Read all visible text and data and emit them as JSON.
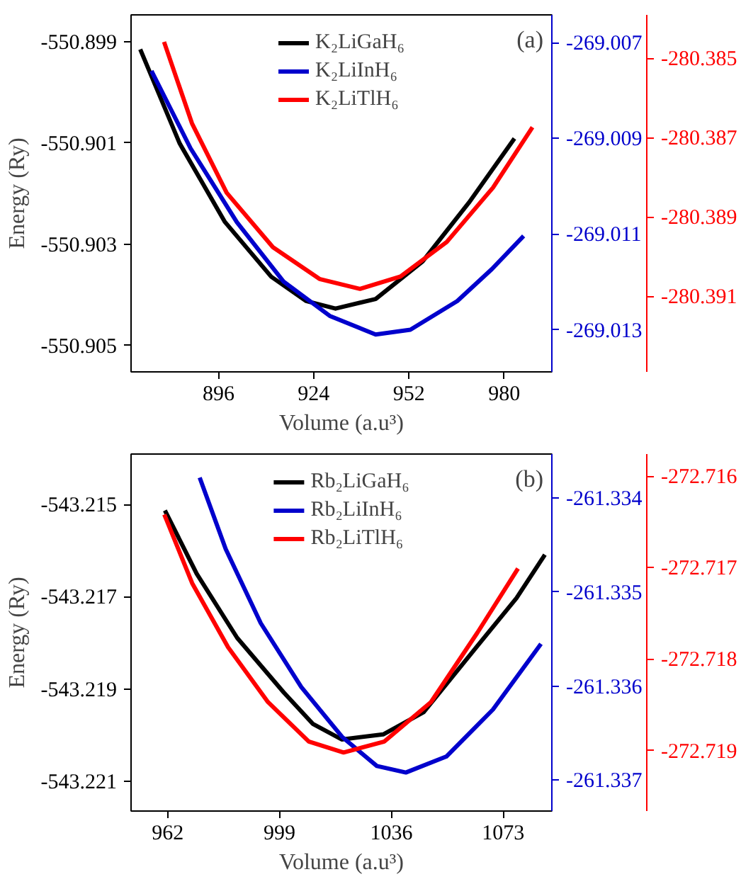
{
  "chart_data": [
    {
      "type": "line",
      "xlabel": "Volume (a.u³)",
      "ylabel": "Energy (Ry)",
      "annotations": [
        "(a)"
      ],
      "legend": "top",
      "grid": false,
      "line_style": "solid",
      "marker": "none",
      "xlim": [
        870.3,
        994
      ],
      "xticks": [
        896,
        924,
        952,
        980
      ],
      "ylim": [
        -550.90552,
        -550.89847
      ],
      "yticks": [
        -550.905,
        -550.903,
        -550.901,
        -550.899
      ],
      "y2lim": [
        -269.01388,
        -269.00642
      ],
      "y2ticks": [
        -269.013,
        -269.011,
        -269.009,
        -269.007
      ],
      "y3lim": [
        -280.3929,
        -280.38391
      ],
      "y3ticks": [
        -280.391,
        -280.389,
        -280.387,
        -280.385
      ],
      "series": [
        {
          "name": "K₂LiGaH₆",
          "color": "#000000",
          "x": [
            873,
            884.6,
            897.9,
            911.5,
            921.7,
            930.4,
            942.2,
            956,
            969.6,
            983
          ],
          "values": [
            -550.89915,
            -550.90101,
            -550.90256,
            -550.90364,
            -550.90412,
            -550.90427,
            -550.90408,
            -550.90334,
            -550.90218,
            -550.90091
          ]
        },
        {
          "name": "K₂LiInH₆",
          "color": "#0000cc",
          "axis": "y2",
          "x": [
            876.3,
            887.8,
            901.4,
            915.1,
            928.7,
            942.2,
            952.4,
            966.2,
            976.4,
            985.7
          ],
          "values": [
            -269.00759,
            -269.00921,
            -269.01075,
            -269.01199,
            -269.01271,
            -269.0131,
            -269.013,
            -269.0124,
            -269.01173,
            -269.01104
          ]
        },
        {
          "name": "K₂LiTlH₆",
          "color": "#ff0000",
          "axis": "y3",
          "x": [
            880,
            888.2,
            898.4,
            912,
            925.7,
            937.6,
            949.5,
            963.1,
            976.7,
            988.3
          ],
          "values": [
            -280.38459,
            -280.38664,
            -280.38839,
            -280.38976,
            -280.39056,
            -280.39081,
            -280.3905,
            -280.38963,
            -280.38826,
            -280.38674
          ]
        }
      ]
    },
    {
      "type": "line",
      "xlabel": "Volume (a.u³)",
      "ylabel": "Energy (Ry)",
      "annotations": [
        "(b)"
      ],
      "legend": "top",
      "grid": false,
      "line_style": "solid",
      "marker": "none",
      "xlim": [
        949.9,
        1089.1
      ],
      "xticks": [
        962,
        999,
        1036,
        1073
      ],
      "ylim": [
        -543.22164,
        -543.21391
      ],
      "yticks": [
        -543.221,
        -543.219,
        -543.217,
        -543.215
      ],
      "y2lim": [
        -261.33733,
        -261.33353
      ],
      "y2ticks": [
        -261.337,
        -261.336,
        -261.335,
        -261.334
      ],
      "y3lim": [
        -272.71966,
        -272.71576
      ],
      "y3ticks": [
        -272.719,
        -272.718,
        -272.717,
        -272.716
      ],
      "series": [
        {
          "name": "Rb₂LiGaH₆",
          "color": "#000000",
          "x": [
            961.1,
            971.6,
            985,
            1000.4,
            1010,
            1019.6,
            1033.3,
            1046.7,
            1063.9,
            1077.4,
            1086.8
          ],
          "values": [
            -543.21513,
            -543.2165,
            -543.21789,
            -543.21907,
            -543.21975,
            -543.22009,
            -543.21998,
            -543.2195,
            -543.21811,
            -543.21703,
            -543.21609
          ]
        },
        {
          "name": "Rb₂LiInH₆",
          "color": "#0000cc",
          "axis": "y2",
          "x": [
            972.6,
            981.2,
            992.8,
            1006.2,
            1019.7,
            1031.2,
            1040.8,
            1054.2,
            1069.6,
            1085.5
          ],
          "values": [
            -261.33378,
            -261.33454,
            -261.33533,
            -261.33601,
            -261.33654,
            -261.33685,
            -261.33692,
            -261.33675,
            -261.33625,
            -261.33555
          ]
        },
        {
          "name": "Rb₂LiTlH₆",
          "color": "#ff0000",
          "axis": "y3",
          "x": [
            960.9,
            970.1,
            982,
            995.2,
            1008.7,
            1020.2,
            1033.7,
            1049.1,
            1064.5,
            1077.9
          ],
          "values": [
            -272.71642,
            -272.71717,
            -272.71787,
            -272.71847,
            -272.7189,
            -272.71902,
            -272.7189,
            -272.71847,
            -272.71771,
            -272.71701
          ]
        }
      ]
    }
  ]
}
